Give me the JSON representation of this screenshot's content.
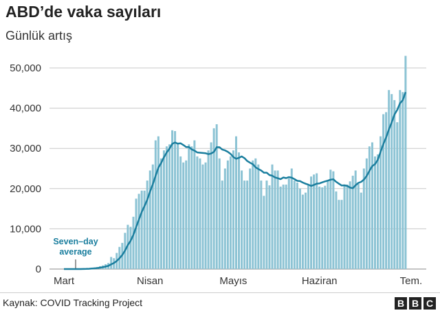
{
  "header": {
    "title": "ABD’de vaka sayıları",
    "subtitle": "Günlük artış"
  },
  "footer": {
    "source": "Kaynak: COVID Tracking Project",
    "logo": [
      "B",
      "B",
      "C"
    ]
  },
  "chart_data": {
    "type": "bar",
    "title": "ABD’de vaka sayıları",
    "subtitle": "Günlük artış",
    "x_start": "Mart 1",
    "x_end": "Tem. 2",
    "xticks": [
      "Mart",
      "Nisan",
      "Mayıs",
      "Haziran",
      "Tem."
    ],
    "yticks": [
      "0",
      "10,000",
      "20,000",
      "30,000",
      "40,000",
      "50,000"
    ],
    "ylim": [
      0,
      53000
    ],
    "grid": true,
    "colors": {
      "bars": "#8cc3d4",
      "line": "#1a7e9e"
    },
    "annotation": "Seven–day average",
    "annotation_lines": [
      "Seven–day",
      "average"
    ],
    "series": [
      {
        "type": "bar",
        "values": [
          0,
          0,
          0,
          0,
          0,
          0,
          0,
          100,
          150,
          250,
          300,
          400,
          500,
          700,
          900,
          1200,
          1500,
          3000,
          2700,
          4000,
          5500,
          6500,
          9000,
          11000,
          10500,
          13000,
          17500,
          18700,
          19500,
          19500,
          22000,
          24500,
          26000,
          32000,
          33000,
          27500,
          29500,
          30500,
          31000,
          34500,
          34300,
          31000,
          28000,
          26500,
          27000,
          31000,
          30500,
          32000,
          28000,
          27500,
          26000,
          26500,
          29500,
          31500,
          35000,
          36000,
          27500,
          22000,
          25000,
          27000,
          28000,
          29500,
          33000,
          29000,
          24500,
          22000,
          22000,
          25000,
          27000,
          27500,
          26000,
          22000,
          18200,
          22000,
          20800,
          26000,
          24500,
          24500,
          20500,
          21000,
          21000,
          22500,
          25000,
          22000,
          21500,
          20000,
          18500,
          19000,
          20800,
          23000,
          23500,
          23800,
          20500,
          20300,
          20700,
          22000,
          24700,
          24300,
          19300,
          17200,
          17200,
          21000,
          21000,
          21800,
          23200,
          24500,
          21200,
          19000,
          25000,
          27500,
          30500,
          31500,
          28000,
          28500,
          33000,
          38500,
          39000,
          44500,
          43500,
          42000,
          36500,
          44500,
          44000,
          53000
        ]
      },
      {
        "type": "line",
        "name": "Seven–day average",
        "derived": "7-day rolling mean of bars"
      }
    ]
  }
}
